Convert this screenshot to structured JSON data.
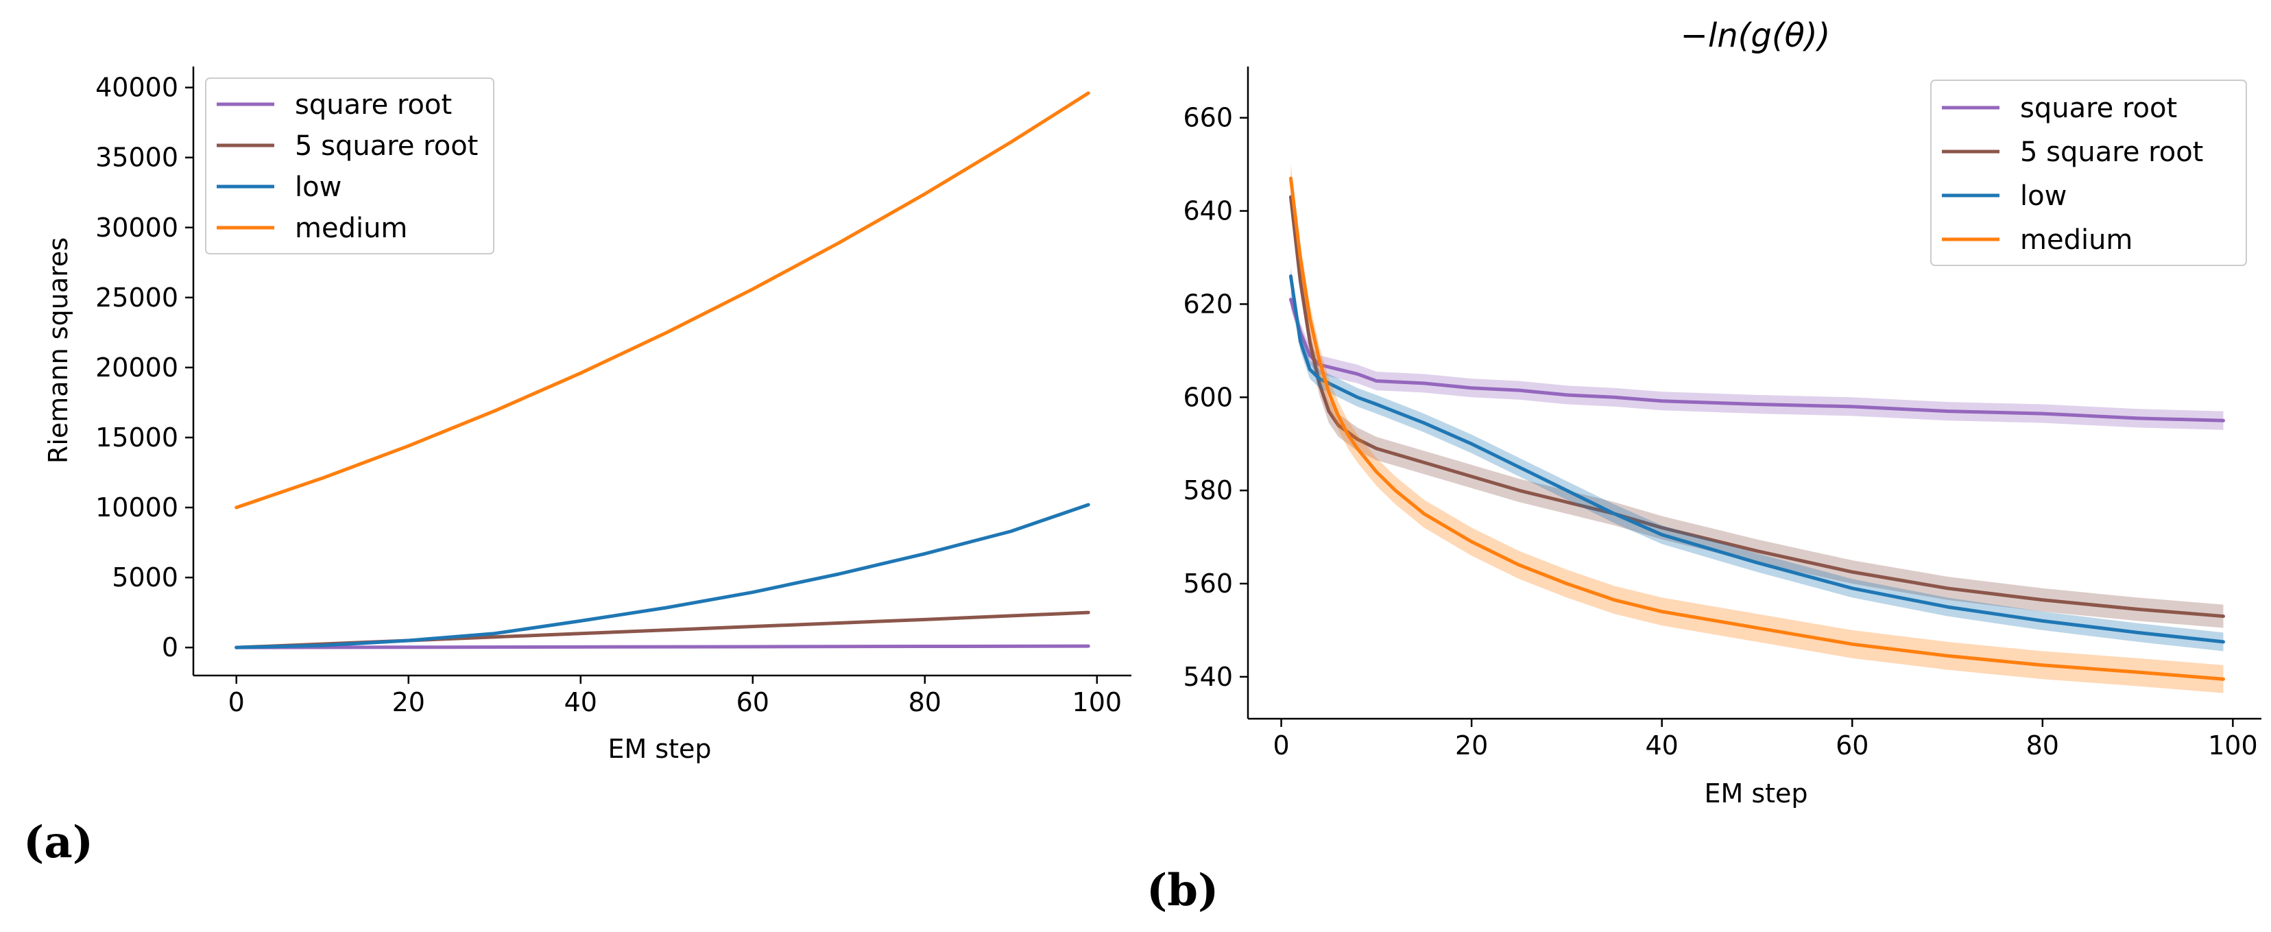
{
  "colors": {
    "square_root": "#9467bd",
    "five_square_root": "#8c564b",
    "low": "#1f77b4",
    "medium": "#ff7f0e",
    "axis": "#000000"
  },
  "panel_a_tag": "(a)",
  "panel_b_tag": "(b)",
  "chart_data": [
    {
      "type": "line",
      "title": "",
      "xlabel": "EM step",
      "ylabel": "Riemann squares",
      "xlim": [
        -5,
        104
      ],
      "ylim": [
        -2000,
        41500
      ],
      "xticks": [
        0,
        20,
        40,
        60,
        80,
        100
      ],
      "yticks": [
        0,
        5000,
        10000,
        15000,
        20000,
        25000,
        30000,
        35000,
        40000
      ],
      "legend": "top-left",
      "series": [
        {
          "name": "square root",
          "color_key": "square_root",
          "x": [
            0,
            20,
            40,
            60,
            80,
            99
          ],
          "y": [
            0,
            20,
            40,
            60,
            80,
            99
          ]
        },
        {
          "name": "5 square root",
          "color_key": "five_square_root",
          "x": [
            0,
            20,
            40,
            60,
            80,
            99
          ],
          "y": [
            0,
            500,
            1000,
            1500,
            2000,
            2500
          ]
        },
        {
          "name": "low",
          "color_key": "low",
          "x": [
            0,
            10,
            20,
            30,
            40,
            50,
            60,
            70,
            80,
            90,
            99
          ],
          "y": [
            0,
            150,
            500,
            1000,
            1900,
            2850,
            3950,
            5250,
            6700,
            8300,
            10200
          ]
        },
        {
          "name": "medium",
          "color_key": "medium",
          "x": [
            0,
            10,
            20,
            30,
            40,
            50,
            60,
            70,
            80,
            90,
            99
          ],
          "y": [
            10000,
            12100,
            14400,
            16900,
            19600,
            22500,
            25600,
            28900,
            32400,
            36100,
            39600
          ]
        }
      ]
    },
    {
      "type": "line",
      "title": "−ln(g(θ))",
      "xlabel": "EM step",
      "ylabel": "",
      "xlim": [
        -3.5,
        103
      ],
      "ylim": [
        531,
        671
      ],
      "xticks": [
        0,
        20,
        40,
        60,
        80,
        100
      ],
      "yticks": [
        540,
        560,
        580,
        600,
        620,
        640,
        660
      ],
      "legend": "top-right",
      "series": [
        {
          "name": "square root",
          "color_key": "square_root",
          "band": 2.0,
          "x": [
            1,
            2,
            3,
            4,
            6,
            8,
            10,
            15,
            20,
            25,
            30,
            35,
            40,
            50,
            60,
            70,
            80,
            90,
            99
          ],
          "y": [
            621,
            614,
            609,
            607,
            606,
            605,
            603.5,
            603,
            602,
            601.5,
            600.5,
            600,
            599.2,
            598.5,
            598,
            597,
            596.5,
            595.5,
            595
          ]
        },
        {
          "name": "5 square root",
          "color_key": "five_square_root",
          "band": 2.5,
          "x": [
            1,
            2,
            3,
            4,
            5,
            6,
            8,
            10,
            15,
            20,
            25,
            30,
            35,
            40,
            50,
            60,
            70,
            80,
            90,
            99
          ],
          "y": [
            643,
            625,
            612,
            603,
            597,
            594,
            591,
            589,
            586,
            583,
            580,
            577.5,
            575,
            572,
            567,
            562.5,
            559,
            556.5,
            554.5,
            553
          ]
        },
        {
          "name": "low",
          "color_key": "low",
          "band": 2.0,
          "x": [
            1,
            2,
            3,
            4,
            5,
            6,
            8,
            10,
            15,
            20,
            25,
            30,
            35,
            40,
            50,
            60,
            70,
            80,
            90,
            99
          ],
          "y": [
            626,
            612,
            606,
            604,
            603,
            602,
            600,
            598.5,
            594.5,
            590,
            585,
            580,
            575,
            570.5,
            564.5,
            559,
            555,
            552,
            549.5,
            547.5
          ]
        },
        {
          "name": "medium",
          "color_key": "medium",
          "band": 3.0,
          "x": [
            1,
            2,
            3,
            4,
            5,
            6,
            7,
            8,
            10,
            12,
            15,
            20,
            25,
            30,
            35,
            40,
            50,
            60,
            70,
            80,
            90,
            99
          ],
          "y": [
            647,
            630,
            617,
            608,
            601,
            596,
            592,
            589,
            584,
            580,
            575,
            569,
            564,
            560,
            556.5,
            554,
            550.5,
            547,
            544.5,
            542.5,
            541,
            539.5
          ]
        }
      ]
    }
  ]
}
